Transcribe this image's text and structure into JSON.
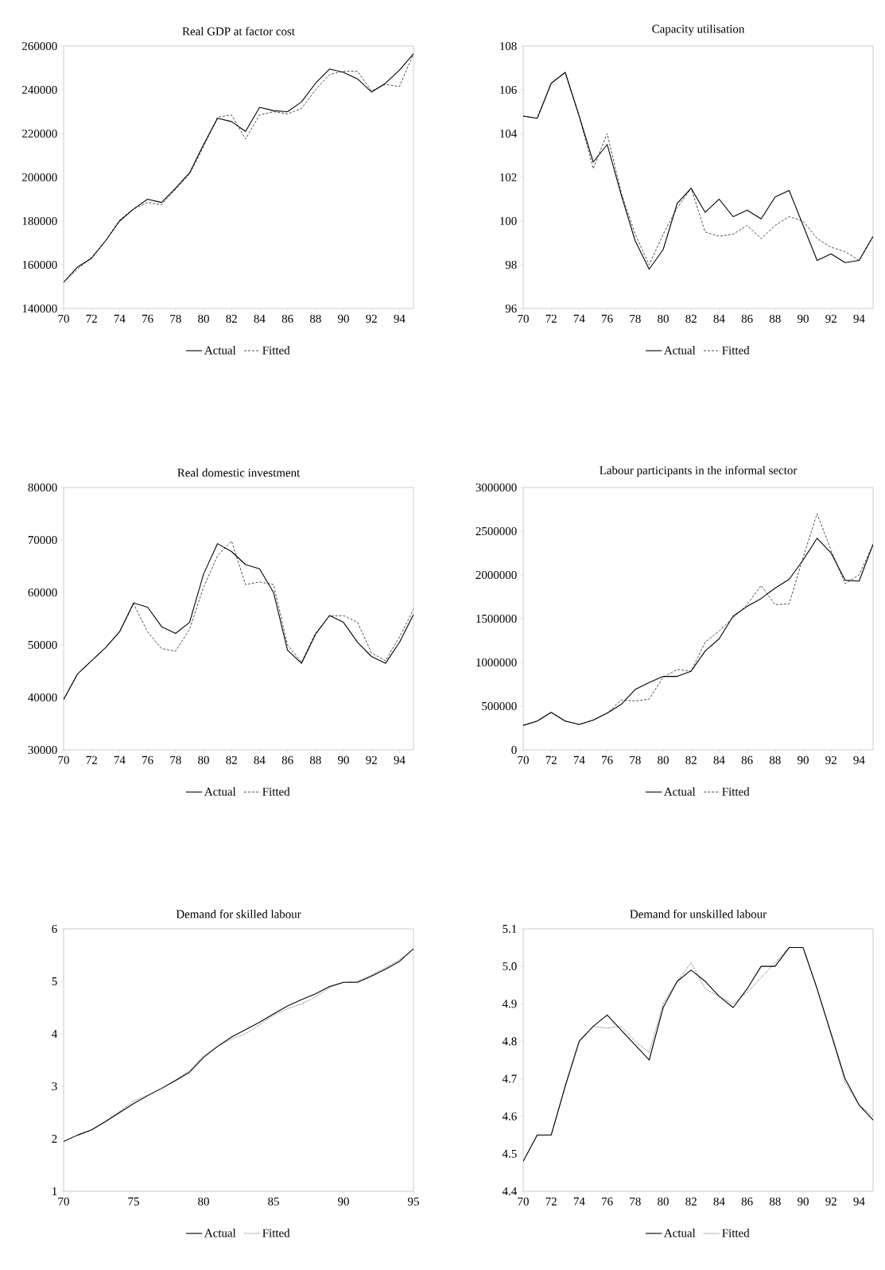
{
  "chart_data": [
    {
      "type": "line",
      "title": "Real GDP at factor cost",
      "x": [
        70,
        71,
        72,
        73,
        74,
        75,
        76,
        77,
        78,
        79,
        80,
        81,
        82,
        83,
        84,
        85,
        86,
        87,
        88,
        89,
        90,
        91,
        92,
        93,
        94,
        95
      ],
      "xlim": [
        70,
        95
      ],
      "xticks": [
        70,
        72,
        74,
        76,
        78,
        80,
        82,
        84,
        86,
        88,
        90,
        92,
        94
      ],
      "ylim": [
        140000,
        260000
      ],
      "yticks": [
        140000,
        160000,
        180000,
        200000,
        220000,
        240000,
        260000
      ],
      "legend": "bottom",
      "series": [
        {
          "name": "Actual",
          "color": "#000000",
          "line_style": "solid",
          "values": [
            152000,
            159000,
            163000,
            171000,
            180000,
            185500,
            190000,
            188500,
            195000,
            202000,
            215000,
            227000,
            225500,
            221000,
            232000,
            230500,
            230000,
            234500,
            243000,
            249500,
            248000,
            245000,
            239000,
            243000,
            249000,
            256500
          ]
        },
        {
          "name": "Fitted",
          "color": "#000000",
          "line_style": "dashed",
          "values": [
            152000,
            158000,
            163500,
            171000,
            180500,
            185500,
            188500,
            187500,
            194500,
            201500,
            214000,
            227500,
            228500,
            217500,
            228500,
            230000,
            229000,
            231500,
            240000,
            247000,
            248500,
            248500,
            239500,
            242500,
            241500,
            256500
          ]
        }
      ]
    },
    {
      "type": "line",
      "title": "Capacity utilisation",
      "x": [
        70,
        71,
        72,
        73,
        74,
        75,
        76,
        77,
        78,
        79,
        80,
        81,
        82,
        83,
        84,
        85,
        86,
        87,
        88,
        89,
        90,
        91,
        92,
        93,
        94,
        95
      ],
      "xlim": [
        70,
        95
      ],
      "xticks": [
        70,
        72,
        74,
        76,
        78,
        80,
        82,
        84,
        86,
        88,
        90,
        92,
        94
      ],
      "ylim": [
        96,
        108
      ],
      "yticks": [
        96,
        98,
        100,
        102,
        104,
        106,
        108
      ],
      "legend": "bottom",
      "series": [
        {
          "name": "Actual",
          "color": "#000000",
          "line_style": "solid",
          "values": [
            104.8,
            104.7,
            106.3,
            106.8,
            104.8,
            102.7,
            103.5,
            101.2,
            99.1,
            97.8,
            98.7,
            100.8,
            101.5,
            100.4,
            101.0,
            100.2,
            100.5,
            100.1,
            101.1,
            101.4,
            99.8,
            98.2,
            98.5,
            98.1,
            98.2,
            99.3
          ]
        },
        {
          "name": "Fitted",
          "color": "#000000",
          "line_style": "dashed",
          "values": [
            104.8,
            104.7,
            106.3,
            106.8,
            104.8,
            102.4,
            104.0,
            101.3,
            99.4,
            98.0,
            99.4,
            100.6,
            101.5,
            99.5,
            99.3,
            99.4,
            99.8,
            99.2,
            99.8,
            100.2,
            100.0,
            99.2,
            98.8,
            98.6,
            98.2,
            99.3
          ]
        }
      ]
    },
    {
      "type": "line",
      "title": "Real domestic investment",
      "x": [
        70,
        71,
        72,
        73,
        74,
        75,
        76,
        77,
        78,
        79,
        80,
        81,
        82,
        83,
        84,
        85,
        86,
        87,
        88,
        89,
        90,
        91,
        92,
        93,
        94,
        95
      ],
      "xlim": [
        70,
        95
      ],
      "xticks": [
        70,
        72,
        74,
        76,
        78,
        80,
        82,
        84,
        86,
        88,
        90,
        92,
        94
      ],
      "ylim": [
        30000,
        80000
      ],
      "yticks": [
        30000,
        40000,
        50000,
        60000,
        70000,
        80000
      ],
      "legend": "bottom",
      "series": [
        {
          "name": "Actual",
          "color": "#000000",
          "line_style": "solid",
          "values": [
            39600,
            44500,
            47000,
            49500,
            52500,
            58000,
            57200,
            53500,
            52200,
            54300,
            63500,
            69300,
            67800,
            65300,
            64500,
            60000,
            49000,
            46500,
            52000,
            55600,
            54300,
            50500,
            47800,
            46500,
            50500,
            55800
          ]
        },
        {
          "name": "Fitted",
          "color": "#000000",
          "line_style": "dashed",
          "values": [
            39600,
            44500,
            47000,
            49500,
            52500,
            57800,
            52500,
            49300,
            48800,
            53000,
            61000,
            67000,
            69800,
            61500,
            62000,
            61500,
            50000,
            46700,
            52300,
            55500,
            55600,
            54300,
            48500,
            47000,
            51500,
            56800
          ]
        }
      ]
    },
    {
      "type": "line",
      "title": "Labour participants in the informal sector",
      "x": [
        70,
        71,
        72,
        73,
        74,
        75,
        76,
        77,
        78,
        79,
        80,
        81,
        82,
        83,
        84,
        85,
        86,
        87,
        88,
        89,
        90,
        91,
        92,
        93,
        94,
        95
      ],
      "xlim": [
        70,
        95
      ],
      "xticks": [
        70,
        72,
        74,
        76,
        78,
        80,
        82,
        84,
        86,
        88,
        90,
        92,
        94
      ],
      "ylim": [
        0,
        3000000
      ],
      "yticks": [
        0,
        500000,
        1000000,
        1500000,
        2000000,
        2500000,
        3000000
      ],
      "legend": "bottom",
      "series": [
        {
          "name": "Actual",
          "color": "#000000",
          "line_style": "solid",
          "values": [
            280000,
            330000,
            430000,
            330000,
            290000,
            340000,
            420000,
            520000,
            690000,
            770000,
            840000,
            840000,
            900000,
            1130000,
            1270000,
            1530000,
            1640000,
            1730000,
            1850000,
            1950000,
            2170000,
            2420000,
            2250000,
            1940000,
            1930000,
            2350000
          ]
        },
        {
          "name": "Fitted",
          "color": "#000000",
          "line_style": "dashed",
          "values": [
            280000,
            330000,
            430000,
            330000,
            290000,
            340000,
            420000,
            570000,
            560000,
            580000,
            830000,
            920000,
            900000,
            1230000,
            1360000,
            1510000,
            1660000,
            1880000,
            1660000,
            1670000,
            2200000,
            2700000,
            2280000,
            1900000,
            2000000,
            2350000
          ]
        }
      ]
    },
    {
      "type": "line",
      "title": "Demand for skilled labour",
      "x": [
        70,
        71,
        72,
        73,
        74,
        75,
        76,
        77,
        78,
        79,
        80,
        81,
        82,
        83,
        84,
        85,
        86,
        87,
        88,
        89,
        90,
        91,
        92,
        93,
        94,
        95
      ],
      "xlim": [
        70,
        95
      ],
      "xticks": [
        70,
        75,
        80,
        85,
        90,
        95
      ],
      "ylim": [
        1,
        6
      ],
      "yticks": [
        1,
        2,
        3,
        4,
        5,
        6
      ],
      "legend": "bottom",
      "series": [
        {
          "name": "Actual",
          "color": "#000000",
          "line_style": "solid",
          "values": [
            1.95,
            2.07,
            2.17,
            2.33,
            2.5,
            2.67,
            2.82,
            2.96,
            3.11,
            3.27,
            3.55,
            3.76,
            3.94,
            4.08,
            4.22,
            4.38,
            4.53,
            4.65,
            4.76,
            4.9,
            4.98,
            4.98,
            5.1,
            5.23,
            5.38,
            5.62
          ]
        },
        {
          "name": "Fitted",
          "color": "#000000",
          "line_style": "dotted",
          "values": [
            1.95,
            2.07,
            2.17,
            2.33,
            2.52,
            2.72,
            2.83,
            2.96,
            3.12,
            3.3,
            3.58,
            3.76,
            3.9,
            4.0,
            4.17,
            4.35,
            4.48,
            4.57,
            4.7,
            4.88,
            4.98,
            5.0,
            5.12,
            5.26,
            5.41,
            5.62
          ]
        }
      ]
    },
    {
      "type": "line",
      "title": "Demand for unskilled labour",
      "x": [
        70,
        71,
        72,
        73,
        74,
        75,
        76,
        77,
        78,
        79,
        80,
        81,
        82,
        83,
        84,
        85,
        86,
        87,
        88,
        89,
        90,
        91,
        92,
        93,
        94,
        95
      ],
      "xlim": [
        70,
        95
      ],
      "xticks": [
        70,
        72,
        74,
        76,
        78,
        80,
        82,
        84,
        86,
        88,
        90,
        92,
        94
      ],
      "ylim": [
        4.4,
        5.1
      ],
      "yticks": [
        4.4,
        4.5,
        4.6,
        4.7,
        4.8,
        4.9,
        {
          "value": 5,
          "label": "5.0"
        },
        5.1
      ],
      "legend": "bottom",
      "series": [
        {
          "name": "Actual",
          "color": "#000000",
          "line_style": "solid",
          "values": [
            4.48,
            4.55,
            4.55,
            4.68,
            4.8,
            4.84,
            4.87,
            4.83,
            4.79,
            4.75,
            4.89,
            4.96,
            4.99,
            4.96,
            4.92,
            4.89,
            4.94,
            5.0,
            5.0,
            5.05,
            5.05,
            4.94,
            4.82,
            4.7,
            4.63,
            4.59
          ]
        },
        {
          "name": "Fitted",
          "color": "#000000",
          "line_style": "dotted",
          "values": [
            4.48,
            4.55,
            4.55,
            4.68,
            4.8,
            4.84,
            4.835,
            4.84,
            4.8,
            4.77,
            4.9,
            4.96,
            5.01,
            4.94,
            4.92,
            4.9,
            4.93,
            4.97,
            5.01,
            5.05,
            5.05,
            4.94,
            4.82,
            4.69,
            4.63,
            4.6
          ]
        }
      ]
    }
  ]
}
